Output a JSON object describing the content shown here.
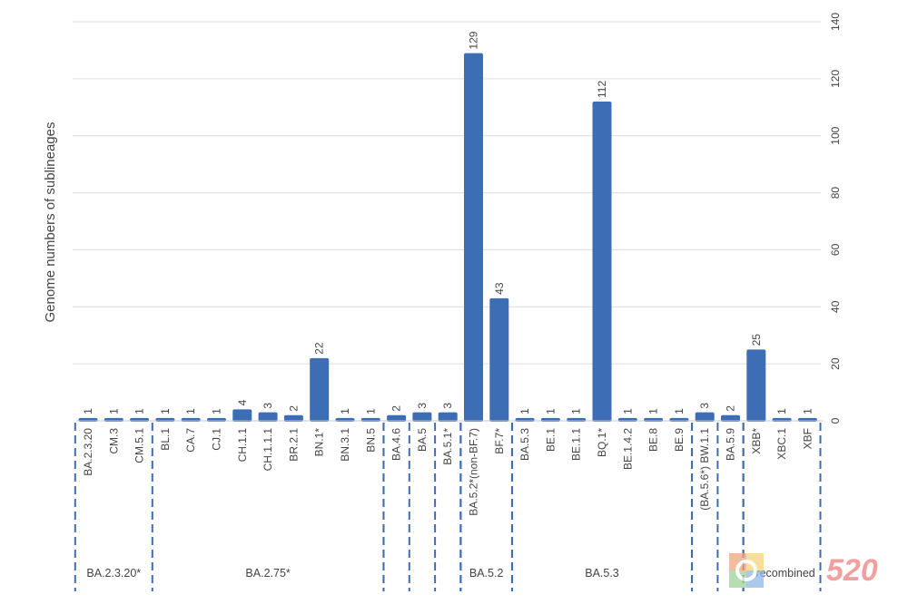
{
  "chart_data": {
    "type": "bar",
    "title": "",
    "xlabel": "",
    "ylabel": "Genome numbers of sublineages",
    "ylim": [
      0,
      140
    ],
    "yticks": [
      0,
      20,
      40,
      60,
      80,
      100,
      120,
      140
    ],
    "y_axis_side": "right",
    "grid": true,
    "bar_color": "#3d6db5",
    "categories": [
      "BA.2.3.20",
      "CM.3",
      "CM.5.1",
      "BL.1",
      "CA.7",
      "CJ.1",
      "CH.1.1",
      "CH.1.1.1",
      "BR.2.1",
      "BN.1*",
      "BN.3.1",
      "BN.5",
      "BA.4.6",
      "BA.5",
      "BA.5.1*",
      "BA.5.2*(non-BF.7)",
      "BF.7*",
      "BA.5.3",
      "BE.1",
      "BE.1.1",
      "BQ.1*",
      "BE.1.4.2",
      "BE.8",
      "BE.9",
      "(BA.5.6*) BW.1.1",
      "BA.5.9",
      "XBB*",
      "XBC.1",
      "XBF"
    ],
    "values": [
      1,
      1,
      1,
      1,
      1,
      1,
      4,
      3,
      2,
      22,
      1,
      1,
      2,
      3,
      3,
      129,
      43,
      1,
      1,
      1,
      112,
      1,
      1,
      1,
      3,
      2,
      25,
      1,
      1
    ],
    "groups": [
      {
        "label": "BA.2.3.20*",
        "start": 0,
        "end": 2
      },
      {
        "label": "BA.2.75*",
        "start": 3,
        "end": 11
      },
      {
        "label": "",
        "start": 12,
        "end": 12
      },
      {
        "label": "",
        "start": 13,
        "end": 13
      },
      {
        "label": "",
        "start": 14,
        "end": 14
      },
      {
        "label": "BA.5.2",
        "start": 15,
        "end": 16
      },
      {
        "label": "BA.5.3",
        "start": 17,
        "end": 23
      },
      {
        "label": "",
        "start": 24,
        "end": 24
      },
      {
        "label": "",
        "start": 25,
        "end": 25
      },
      {
        "label": "recombined",
        "start": 26,
        "end": 28
      }
    ]
  }
}
